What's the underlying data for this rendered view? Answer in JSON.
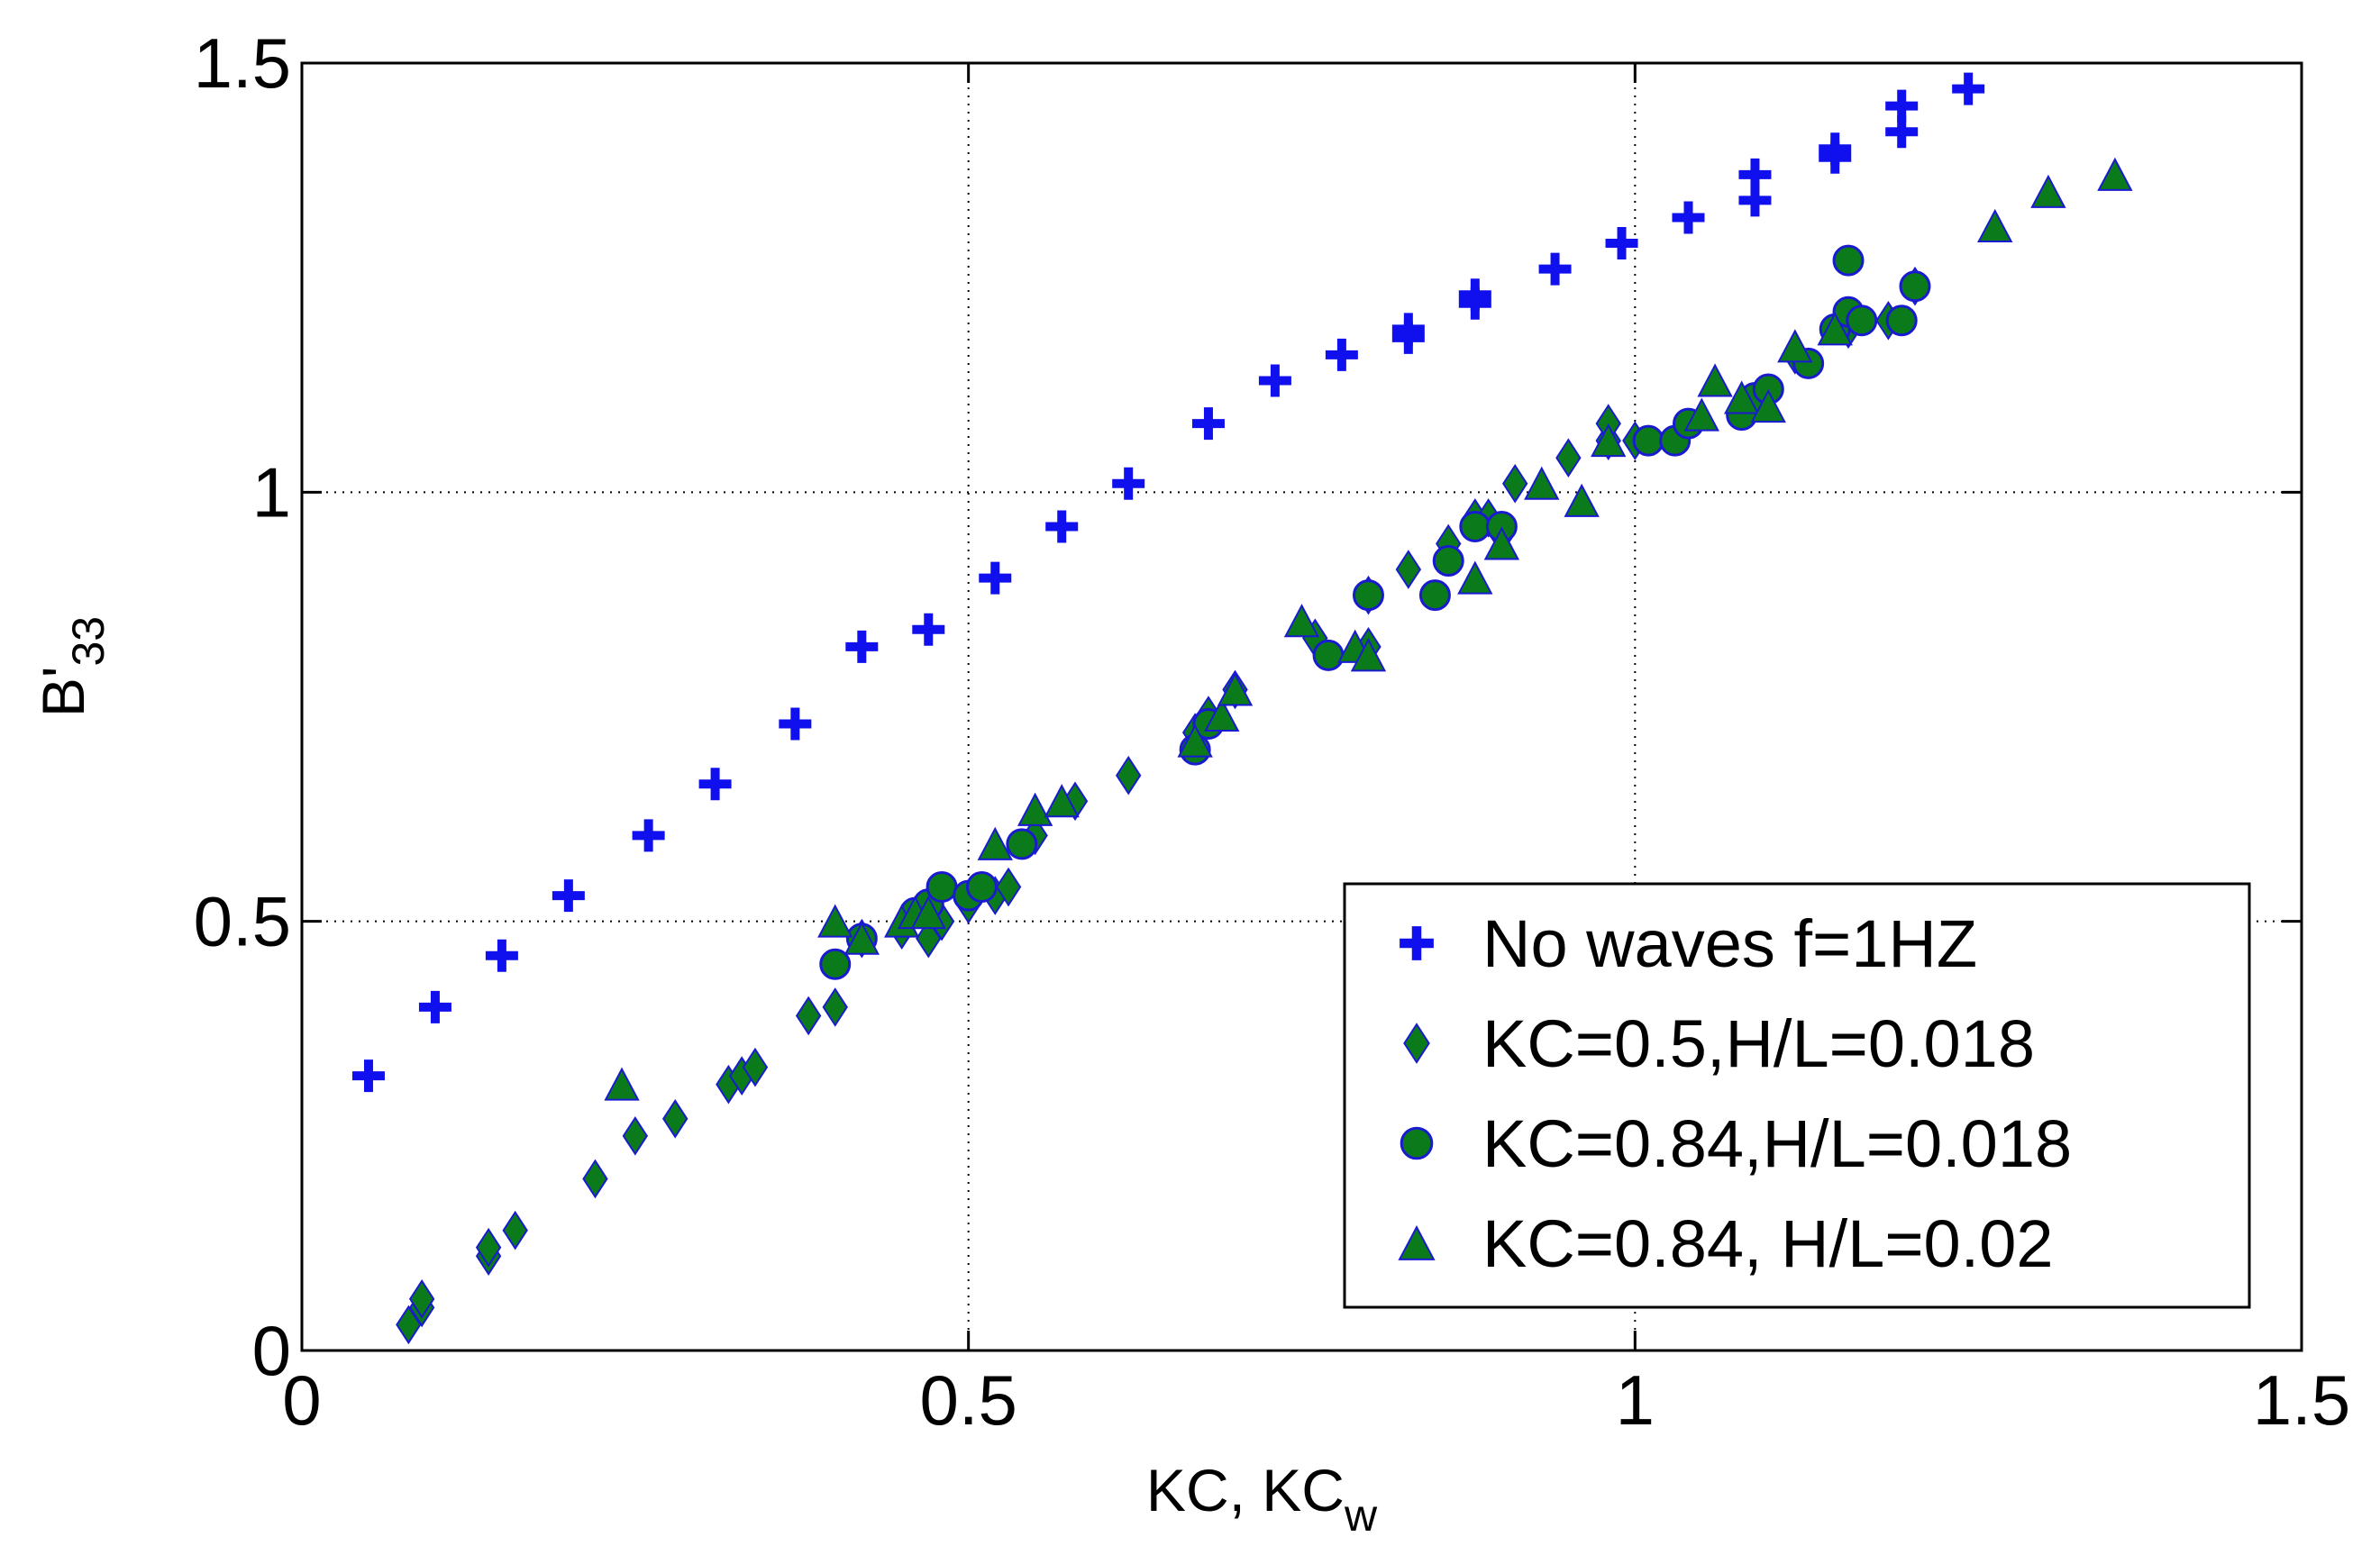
{
  "chart_data": {
    "type": "scatter",
    "title": "",
    "xlabel_main": "KC, KC",
    "xlabel_sub": "w",
    "ylabel_main": "B'",
    "ylabel_sub": "33",
    "xlim": [
      0,
      1.5
    ],
    "ylim": [
      0,
      1.5
    ],
    "xticks": [
      0,
      0.5,
      1,
      1.5
    ],
    "xtick_labels": [
      "0",
      "0.5",
      "1",
      "1.5"
    ],
    "yticks": [
      0,
      0.5,
      1,
      1.5
    ],
    "ytick_labels": [
      "0",
      "0.5",
      "1",
      "1.5"
    ],
    "grid": true,
    "legend_position": "bottom-right",
    "colors": {
      "blue": "#1010ee",
      "green": "#0b7a1a",
      "edge": "#1a1ad0"
    },
    "series": [
      {
        "name": "No waves f=1HZ",
        "marker": "plus",
        "color": "#1010ee",
        "points": [
          [
            0.05,
            0.32
          ],
          [
            0.1,
            0.4
          ],
          [
            0.15,
            0.46
          ],
          [
            0.2,
            0.53
          ],
          [
            0.26,
            0.6
          ],
          [
            0.31,
            0.66
          ],
          [
            0.37,
            0.73
          ],
          [
            0.42,
            0.82
          ],
          [
            0.47,
            0.84
          ],
          [
            0.52,
            0.9
          ],
          [
            0.57,
            0.96
          ],
          [
            0.62,
            1.01
          ],
          [
            0.68,
            1.08
          ],
          [
            0.73,
            1.13
          ],
          [
            0.78,
            1.16
          ],
          [
            0.83,
            1.18
          ],
          [
            0.83,
            1.19
          ],
          [
            0.88,
            1.22
          ],
          [
            0.88,
            1.23
          ],
          [
            0.94,
            1.26
          ],
          [
            0.99,
            1.29
          ],
          [
            1.04,
            1.32
          ],
          [
            1.09,
            1.34
          ],
          [
            1.09,
            1.37
          ],
          [
            1.15,
            1.39
          ],
          [
            1.15,
            1.4
          ],
          [
            1.2,
            1.42
          ],
          [
            1.2,
            1.45
          ],
          [
            1.25,
            1.47
          ]
        ]
      },
      {
        "name": "KC=0.5,H/L=0.018",
        "marker": "diamond",
        "color": "#0b7a1a",
        "points": [
          [
            0.08,
            0.03
          ],
          [
            0.09,
            0.05
          ],
          [
            0.09,
            0.06
          ],
          [
            0.14,
            0.11
          ],
          [
            0.14,
            0.12
          ],
          [
            0.16,
            0.14
          ],
          [
            0.22,
            0.2
          ],
          [
            0.25,
            0.25
          ],
          [
            0.28,
            0.27
          ],
          [
            0.32,
            0.31
          ],
          [
            0.33,
            0.32
          ],
          [
            0.34,
            0.33
          ],
          [
            0.38,
            0.39
          ],
          [
            0.4,
            0.4
          ],
          [
            0.42,
            0.48
          ],
          [
            0.45,
            0.49
          ],
          [
            0.47,
            0.48
          ],
          [
            0.48,
            0.5
          ],
          [
            0.5,
            0.52
          ],
          [
            0.52,
            0.53
          ],
          [
            0.53,
            0.54
          ],
          [
            0.55,
            0.6
          ],
          [
            0.58,
            0.64
          ],
          [
            0.62,
            0.67
          ],
          [
            0.67,
            0.72
          ],
          [
            0.68,
            0.74
          ],
          [
            0.7,
            0.77
          ],
          [
            0.76,
            0.83
          ],
          [
            0.8,
            0.82
          ],
          [
            0.8,
            0.88
          ],
          [
            0.83,
            0.91
          ],
          [
            0.86,
            0.94
          ],
          [
            0.88,
            0.97
          ],
          [
            0.89,
            0.97
          ],
          [
            0.9,
            0.95
          ],
          [
            0.91,
            1.01
          ],
          [
            0.95,
            1.04
          ],
          [
            0.98,
            1.06
          ],
          [
            0.98,
            1.08
          ],
          [
            1.0,
            1.06
          ],
          [
            1.08,
            1.1
          ],
          [
            1.12,
            1.16
          ],
          [
            1.16,
            1.19
          ],
          [
            1.19,
            1.2
          ],
          [
            1.21,
            1.24
          ]
        ]
      },
      {
        "name": "KC=0.84,H/L=0.018",
        "marker": "circle",
        "color": "#0b7a1a",
        "points": [
          [
            0.4,
            0.45
          ],
          [
            0.42,
            0.48
          ],
          [
            0.46,
            0.51
          ],
          [
            0.47,
            0.52
          ],
          [
            0.48,
            0.54
          ],
          [
            0.5,
            0.53
          ],
          [
            0.51,
            0.54
          ],
          [
            0.54,
            0.59
          ],
          [
            0.67,
            0.7
          ],
          [
            0.68,
            0.73
          ],
          [
            0.77,
            0.81
          ],
          [
            0.8,
            0.88
          ],
          [
            0.85,
            0.88
          ],
          [
            0.86,
            0.92
          ],
          [
            0.88,
            0.96
          ],
          [
            0.9,
            0.96
          ],
          [
            1.01,
            1.06
          ],
          [
            1.03,
            1.06
          ],
          [
            1.04,
            1.08
          ],
          [
            1.08,
            1.09
          ],
          [
            1.09,
            1.11
          ],
          [
            1.1,
            1.12
          ],
          [
            1.13,
            1.15
          ],
          [
            1.15,
            1.19
          ],
          [
            1.16,
            1.21
          ],
          [
            1.16,
            1.27
          ],
          [
            1.17,
            1.2
          ],
          [
            1.2,
            1.2
          ],
          [
            1.21,
            1.24
          ]
        ]
      },
      {
        "name": "KC=0.84, H/L=0.02",
        "marker": "triangle",
        "color": "#0b7a1a",
        "points": [
          [
            0.24,
            0.31
          ],
          [
            0.4,
            0.5
          ],
          [
            0.42,
            0.48
          ],
          [
            0.45,
            0.5
          ],
          [
            0.46,
            0.51
          ],
          [
            0.47,
            0.51
          ],
          [
            0.52,
            0.59
          ],
          [
            0.55,
            0.63
          ],
          [
            0.57,
            0.64
          ],
          [
            0.67,
            0.71
          ],
          [
            0.69,
            0.74
          ],
          [
            0.7,
            0.77
          ],
          [
            0.75,
            0.85
          ],
          [
            0.79,
            0.82
          ],
          [
            0.8,
            0.81
          ],
          [
            0.88,
            0.9
          ],
          [
            0.9,
            0.94
          ],
          [
            0.93,
            1.01
          ],
          [
            0.96,
            0.99
          ],
          [
            0.98,
            1.06
          ],
          [
            1.05,
            1.09
          ],
          [
            1.06,
            1.13
          ],
          [
            1.08,
            1.11
          ],
          [
            1.1,
            1.1
          ],
          [
            1.12,
            1.17
          ],
          [
            1.15,
            1.19
          ],
          [
            1.27,
            1.31
          ],
          [
            1.31,
            1.35
          ],
          [
            1.36,
            1.37
          ]
        ]
      }
    ]
  }
}
